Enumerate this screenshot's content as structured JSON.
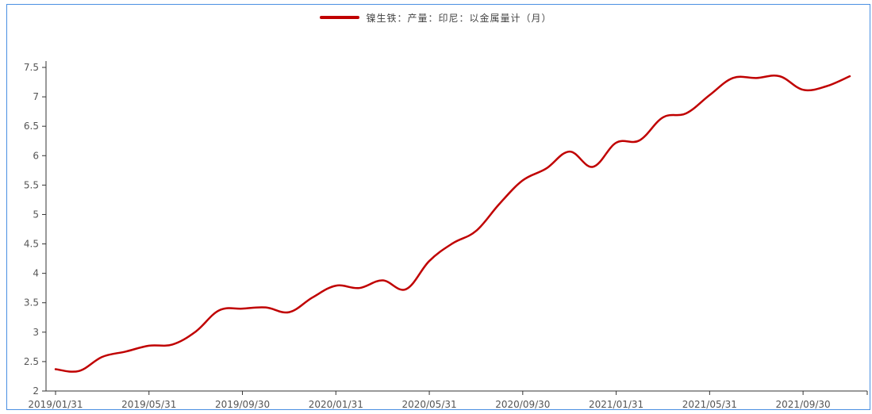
{
  "chart_data": {
    "type": "line",
    "legend": {
      "position": "top-center"
    },
    "grid": false,
    "x": [
      "2019/01/31",
      "2019/02/28",
      "2019/03/31",
      "2019/04/30",
      "2019/05/31",
      "2019/06/30",
      "2019/07/31",
      "2019/08/31",
      "2019/09/30",
      "2019/10/31",
      "2019/11/30",
      "2019/12/31",
      "2020/01/31",
      "2020/02/29",
      "2020/03/31",
      "2020/04/30",
      "2020/05/31",
      "2020/06/30",
      "2020/07/31",
      "2020/08/31",
      "2020/09/30",
      "2020/10/31",
      "2020/11/30",
      "2020/12/31",
      "2021/01/31",
      "2021/02/28",
      "2021/03/31",
      "2021/04/30",
      "2021/05/31",
      "2021/06/30",
      "2021/07/31",
      "2021/08/31",
      "2021/09/30",
      "2021/10/31",
      "2021/11/30"
    ],
    "xticks": [
      "2019/01/31",
      "2019/05/31",
      "2019/09/30",
      "2020/01/31",
      "2020/05/31",
      "2020/09/30",
      "2021/01/31",
      "2021/05/31",
      "2021/09/30"
    ],
    "yticks": [
      "2",
      "2.5",
      "3",
      "3.5",
      "4",
      "4.5",
      "5",
      "5.5",
      "6",
      "6.5",
      "7",
      "7.5"
    ],
    "ylim": [
      2,
      7.5
    ],
    "series": [
      {
        "name": "镍生铁：产量：印尼：以金属量计（月）",
        "color": "#c00000",
        "values": [
          2.37,
          2.34,
          2.58,
          2.67,
          2.77,
          2.79,
          3.01,
          3.37,
          3.4,
          3.42,
          3.34,
          3.59,
          3.79,
          3.75,
          3.88,
          3.73,
          4.21,
          4.51,
          4.72,
          5.18,
          5.58,
          5.78,
          6.07,
          5.81,
          6.22,
          6.26,
          6.65,
          6.72,
          7.03,
          7.32,
          7.32,
          7.35,
          7.12,
          7.18,
          7.35
        ]
      }
    ]
  }
}
